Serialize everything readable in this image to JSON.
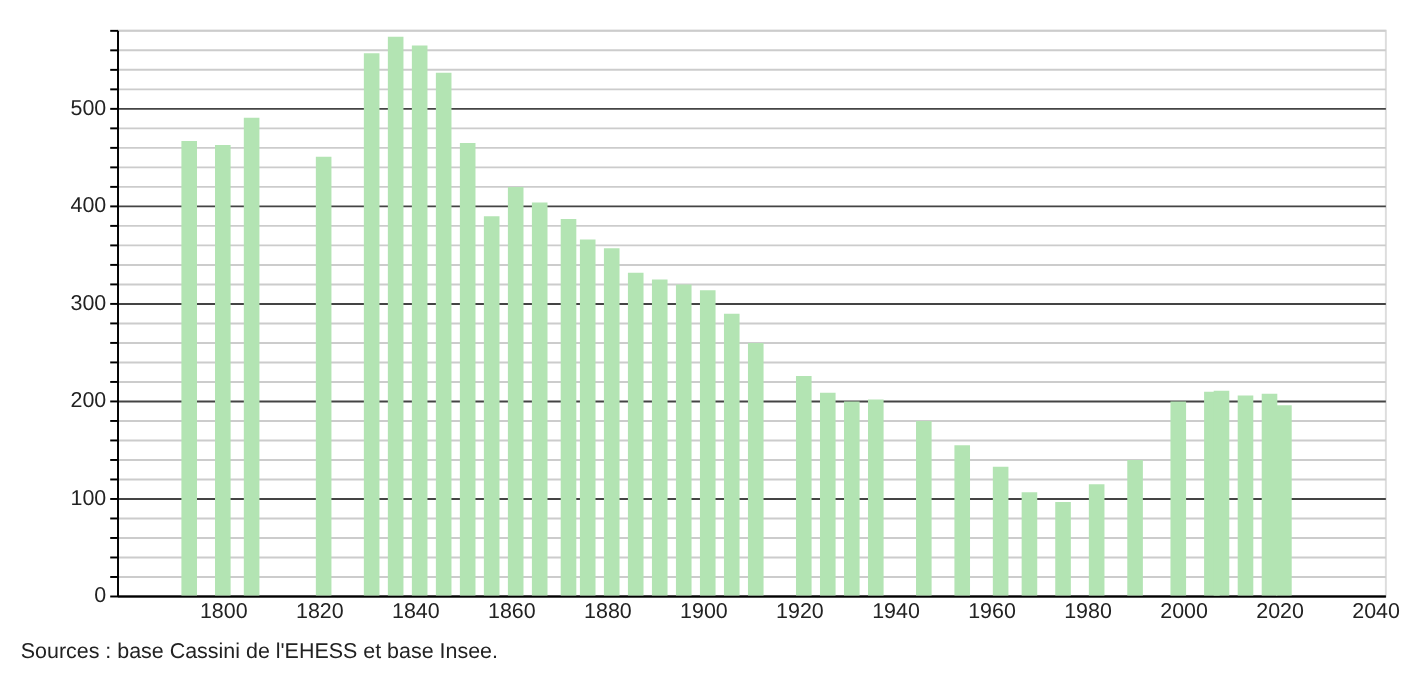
{
  "chart_data": {
    "type": "bar",
    "x": [
      1793,
      1800,
      1806,
      1821,
      1831,
      1836,
      1841,
      1846,
      1851,
      1856,
      1861,
      1866,
      1872,
      1876,
      1881,
      1886,
      1891,
      1896,
      1901,
      1906,
      1911,
      1921,
      1926,
      1931,
      1936,
      1946,
      1954,
      1962,
      1968,
      1975,
      1982,
      1990,
      1999,
      2006,
      2008,
      2013,
      2018,
      2021
    ],
    "values": [
      466,
      462,
      490,
      450,
      556,
      573,
      564,
      536,
      464,
      389,
      419,
      403,
      386,
      365,
      356,
      331,
      324,
      319,
      313,
      289,
      259,
      225,
      208,
      199,
      201,
      179,
      154,
      132,
      106,
      96,
      114,
      139,
      199,
      209,
      210,
      205,
      207,
      195
    ],
    "color": "#b3e4b3",
    "xlim": [
      1780,
      2040
    ],
    "xticks": [
      1800,
      1820,
      1840,
      1860,
      1880,
      1900,
      1920,
      1940,
      1960,
      1980,
      2000,
      2020,
      2040
    ],
    "ylim": [
      0,
      580
    ],
    "yticks": [
      0,
      {
        "value": 20,
        "label": null
      },
      {
        "value": 40,
        "label": null
      },
      {
        "value": 60,
        "label": null
      },
      {
        "value": 80,
        "label": null
      },
      100,
      {
        "value": 120,
        "label": null
      },
      {
        "value": 140,
        "label": null
      },
      {
        "value": 160,
        "label": null
      },
      {
        "value": 180,
        "label": null
      },
      200,
      {
        "value": 220,
        "label": null
      },
      {
        "value": 240,
        "label": null
      },
      {
        "value": 260,
        "label": null
      },
      {
        "value": 280,
        "label": null
      },
      300,
      {
        "value": 320,
        "label": null
      },
      {
        "value": 340,
        "label": null
      },
      {
        "value": 360,
        "label": null
      },
      {
        "value": 380,
        "label": null
      },
      400,
      {
        "value": 420,
        "label": null
      },
      {
        "value": 440,
        "label": null
      },
      {
        "value": 460,
        "label": null
      },
      {
        "value": 480,
        "label": null
      },
      500,
      {
        "value": 520,
        "label": null
      },
      {
        "value": 540,
        "label": null
      },
      {
        "value": 560,
        "label": null
      },
      {
        "value": 580,
        "label": null
      }
    ],
    "grid": "y",
    "annotations": [
      "Sources : base Cassini de l'EHESS et base Insee."
    ]
  }
}
